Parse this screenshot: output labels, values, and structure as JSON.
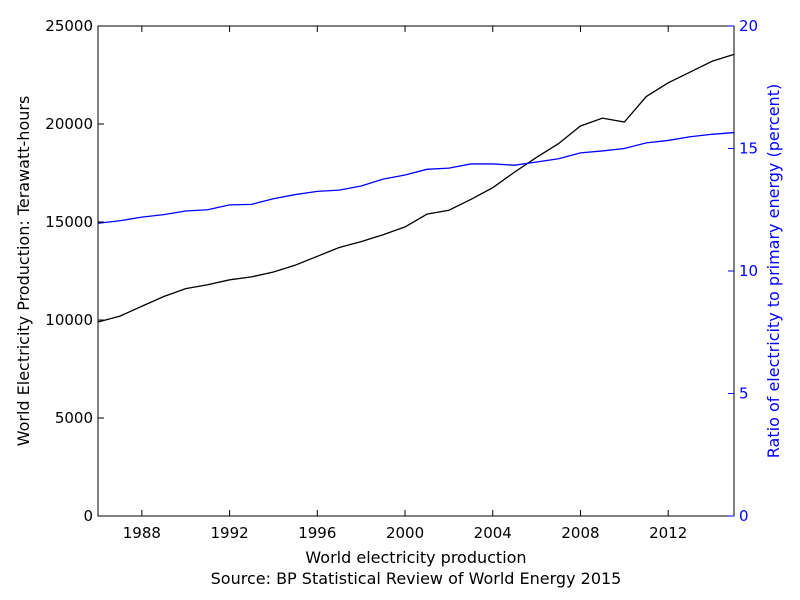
{
  "chart_data": {
    "type": "line",
    "title": "",
    "xlabel": "World electricity production",
    "source_note": "Source: BP Statistical Review of World Energy 2015",
    "ylabel_left": "World Electricity Production: Terawatt-hours",
    "ylabel_right": "Ratio of electricity to primary energy (percent)",
    "x": [
      1986,
      1987,
      1988,
      1989,
      1990,
      1991,
      1992,
      1993,
      1994,
      1995,
      1996,
      1997,
      1998,
      1999,
      2000,
      2001,
      2002,
      2003,
      2004,
      2005,
      2006,
      2007,
      2008,
      2009,
      2010,
      2011,
      2012,
      2013,
      2014,
      2015
    ],
    "xlim": [
      1986,
      2015
    ],
    "x_ticks": [
      1988,
      1992,
      1996,
      2000,
      2004,
      2008,
      2012
    ],
    "ylim_left": [
      0,
      25000
    ],
    "y_ticks_left": [
      0,
      5000,
      10000,
      15000,
      20000,
      25000
    ],
    "ylim_right": [
      0,
      20
    ],
    "y_ticks_right": [
      0,
      5,
      10,
      15,
      20
    ],
    "grid": false,
    "legend": "none",
    "series": [
      {
        "axis": "left",
        "color": "#000000",
        "values": [
          9900,
          10200,
          10700,
          11200,
          11600,
          11800,
          12050,
          12200,
          12450,
          12800,
          13250,
          13700,
          14000,
          14350,
          14750,
          15400,
          15600,
          16150,
          16750,
          17550,
          18300,
          19000,
          19900,
          20300,
          20100,
          21400,
          22100,
          22650,
          23200,
          23550
        ]
      },
      {
        "axis": "right",
        "color": "#0000ff",
        "values": [
          11.95,
          12.05,
          12.2,
          12.3,
          12.45,
          12.5,
          12.7,
          12.72,
          12.95,
          13.12,
          13.25,
          13.3,
          13.47,
          13.75,
          13.92,
          14.15,
          14.2,
          14.37,
          14.37,
          14.32,
          14.45,
          14.58,
          14.82,
          14.9,
          15.0,
          15.23,
          15.33,
          15.48,
          15.58,
          15.65
        ]
      }
    ],
    "colors": {
      "left_axis": "#000000",
      "right_axis": "#0000ff"
    }
  }
}
